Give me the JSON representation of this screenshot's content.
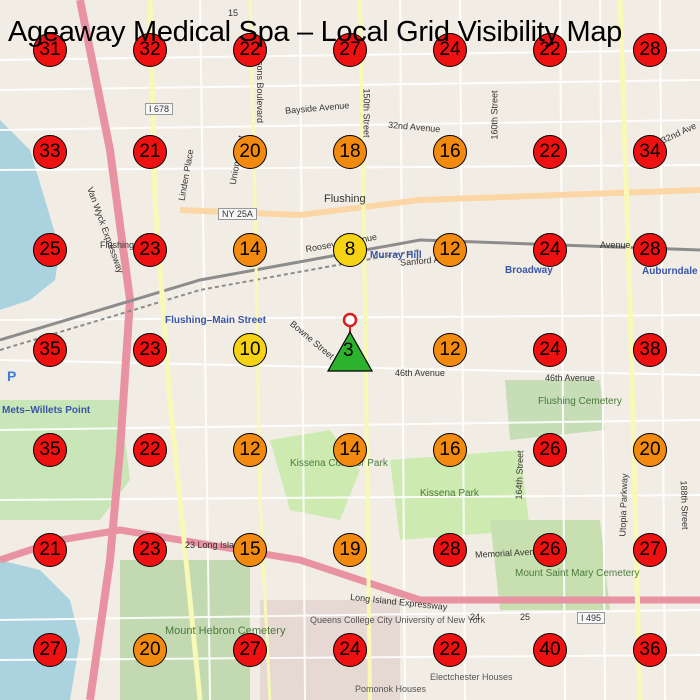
{
  "title": "Ageaway Medical Spa – Local Grid Visibility Map",
  "colors": {
    "red": "#ee1111",
    "orange": "#f38a10",
    "yellow": "#f5d214",
    "green": "#2db22d",
    "pin": "#d62020"
  },
  "center": {
    "rank": "3",
    "color": "green"
  },
  "grid": [
    [
      "31",
      "32",
      "22",
      "27",
      "24",
      "22",
      "28"
    ],
    [
      "33",
      "21",
      "20",
      "18",
      "16",
      "22",
      "34"
    ],
    [
      "25",
      "23",
      "14",
      "8",
      "12",
      "24",
      "28"
    ],
    [
      "35",
      "23",
      "10",
      "",
      "12",
      "24",
      "38"
    ],
    [
      "35",
      "22",
      "12",
      "14",
      "16",
      "26",
      "20"
    ],
    [
      "21",
      "23",
      "15",
      "19",
      "28",
      "26",
      "27"
    ],
    [
      "27",
      "20",
      "27",
      "24",
      "22",
      "40",
      "36"
    ]
  ],
  "labels": {
    "flushing": "Flushing",
    "bayside_ave": "Bayside Avenue",
    "ave32": "32nd Avenue",
    "ave32b": "32nd Ave",
    "st150": "150th Street",
    "st160": "160th Street",
    "parsons": "Parsons Boulevard",
    "union": "Union Street",
    "linden": "Linden Place",
    "vanwyck": "Van Wyck Expressway",
    "flushing_bridge": "Flushing Bridge",
    "roosevelt": "Roosevelt Avenue",
    "sanford": "Sanford Avenue",
    "murray_hill": "Murray Hill",
    "broadway": "Broadway",
    "auburndale": "Auburndale",
    "utopia": "Utopia Parkway",
    "flushing_main": "Flushing–Main Street",
    "bowne": "Bowne Street",
    "ave46": "46th Avenue",
    "ave46b": "46th Avenue",
    "cemetery": "Flushing Cemetery",
    "mets": "Mets–Willets Point",
    "kissena_corridor": "Kissena Corridor Park",
    "kissena_park": "Kissena Park",
    "st164": "164th Street",
    "st188": "188th Street",
    "long_island": "Long Island Expressway",
    "lie_23": "23 Long Island",
    "memorial": "Memorial Avenue",
    "mount_saint_mary": "Mount Saint Mary Cemetery",
    "mount_hebron": "Mount Hebron Cemetery",
    "queens_college": "Queens College City University of New York",
    "pomonok": "Pomonok Houses",
    "electchester": "Electchester Houses",
    "ave": "Avenue",
    "i678": "I 678",
    "ny25a": "NY 25A",
    "i495": "I 495",
    "p_sign": "P",
    "n24": "24",
    "n25": "25",
    "n15": "15"
  }
}
